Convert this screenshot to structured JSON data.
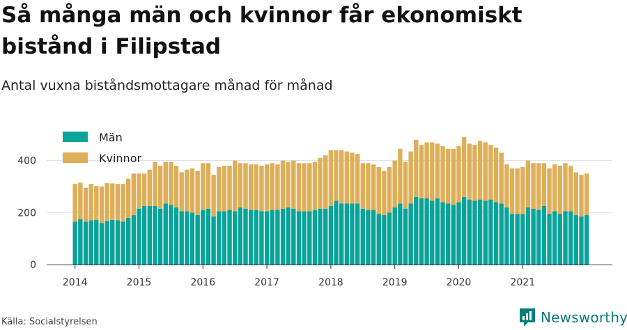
{
  "header": {
    "title": "Så många män och kvinnor får ekonomiskt bistånd i Filipstad",
    "subtitle": "Antal vuxna biståndsmottagare månad för månad"
  },
  "footer": {
    "source": "Källa: Socialstyrelsen",
    "brand": "Newsworthy"
  },
  "colors": {
    "men": "#0aa39a",
    "women": "#deae59",
    "brand": "#0a7d78"
  },
  "chart_data": {
    "type": "bar",
    "stacked": true,
    "title": "Så många män och kvinnor får ekonomiskt bistånd i Filipstad",
    "subtitle": "Antal vuxna biståndsmottagare månad för månad",
    "x_start": "2014-01",
    "frequency": "monthly",
    "x_ticks": [
      "2014",
      "2015",
      "2016",
      "2017",
      "2018",
      "2019",
      "2020",
      "2021"
    ],
    "y_ticks": [
      0,
      200,
      400
    ],
    "ylim": [
      0,
      500
    ],
    "grid": true,
    "legend": "top-left",
    "series": [
      {
        "name": "Män",
        "color": "#0aa39a",
        "values": [
          165,
          175,
          165,
          170,
          172,
          160,
          168,
          172,
          170,
          165,
          180,
          190,
          215,
          225,
          225,
          225,
          215,
          235,
          230,
          220,
          205,
          205,
          200,
          190,
          210,
          215,
          185,
          205,
          205,
          210,
          205,
          220,
          215,
          210,
          210,
          205,
          205,
          210,
          210,
          215,
          220,
          215,
          205,
          205,
          205,
          210,
          215,
          215,
          225,
          245,
          235,
          235,
          235,
          235,
          215,
          210,
          210,
          195,
          190,
          200,
          220,
          235,
          215,
          235,
          260,
          255,
          255,
          245,
          255,
          240,
          235,
          230,
          240,
          260,
          250,
          245,
          250,
          245,
          250,
          240,
          235,
          220,
          195,
          195,
          195,
          220,
          215,
          210,
          225,
          195,
          205,
          195,
          205,
          205,
          190,
          185,
          190
        ]
      },
      {
        "name": "Kvinnor",
        "color": "#deae59",
        "values": [
          145,
          140,
          130,
          140,
          130,
          140,
          145,
          140,
          140,
          145,
          150,
          160,
          135,
          125,
          140,
          170,
          165,
          160,
          165,
          160,
          150,
          160,
          170,
          170,
          180,
          175,
          160,
          170,
          175,
          170,
          195,
          170,
          175,
          175,
          175,
          175,
          180,
          180,
          175,
          185,
          175,
          185,
          185,
          185,
          185,
          185,
          195,
          205,
          215,
          195,
          205,
          200,
          195,
          190,
          175,
          180,
          175,
          180,
          170,
          175,
          180,
          210,
          180,
          200,
          220,
          205,
          215,
          225,
          210,
          215,
          210,
          215,
          215,
          230,
          215,
          215,
          225,
          225,
          210,
          210,
          195,
          165,
          175,
          175,
          180,
          180,
          175,
          180,
          165,
          175,
          180,
          185,
          185,
          175,
          165,
          160,
          160
        ]
      }
    ]
  }
}
